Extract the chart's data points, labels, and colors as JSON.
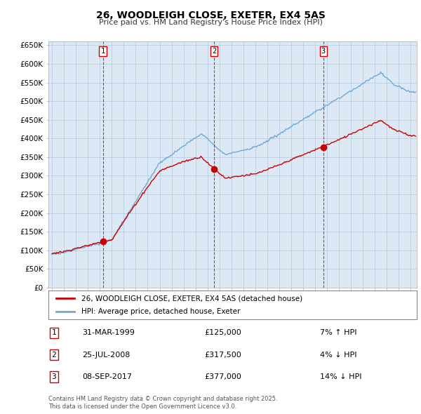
{
  "title": "26, WOODLEIGH CLOSE, EXETER, EX4 5AS",
  "subtitle": "Price paid vs. HM Land Registry's House Price Index (HPI)",
  "legend_line1": "26, WOODLEIGH CLOSE, EXETER, EX4 5AS (detached house)",
  "legend_line2": "HPI: Average price, detached house, Exeter",
  "sales": [
    {
      "label": "1",
      "date": "31-MAR-1999",
      "price": 125000,
      "pct": "7%",
      "dir": "↑",
      "x_year": 1999.25
    },
    {
      "label": "2",
      "date": "25-JUL-2008",
      "price": 317500,
      "pct": "4%",
      "dir": "↓",
      "x_year": 2008.56
    },
    {
      "label": "3",
      "date": "08-SEP-2017",
      "price": 377000,
      "pct": "14%",
      "dir": "↓",
      "x_year": 2017.69
    }
  ],
  "footer_line1": "Contains HM Land Registry data © Crown copyright and database right 2025.",
  "footer_line2": "This data is licensed under the Open Government Licence v3.0.",
  "hpi_color": "#6ea8d8",
  "price_color": "#CC0000",
  "chart_bg": "#dce9f5",
  "ylim": [
    0,
    660000
  ],
  "yticks": [
    0,
    50000,
    100000,
    150000,
    200000,
    250000,
    300000,
    350000,
    400000,
    450000,
    500000,
    550000,
    600000,
    650000
  ],
  "xlim_start": 1994.7,
  "xlim_end": 2025.5,
  "background_color": "#ffffff",
  "grid_color": "#b0c8e0"
}
